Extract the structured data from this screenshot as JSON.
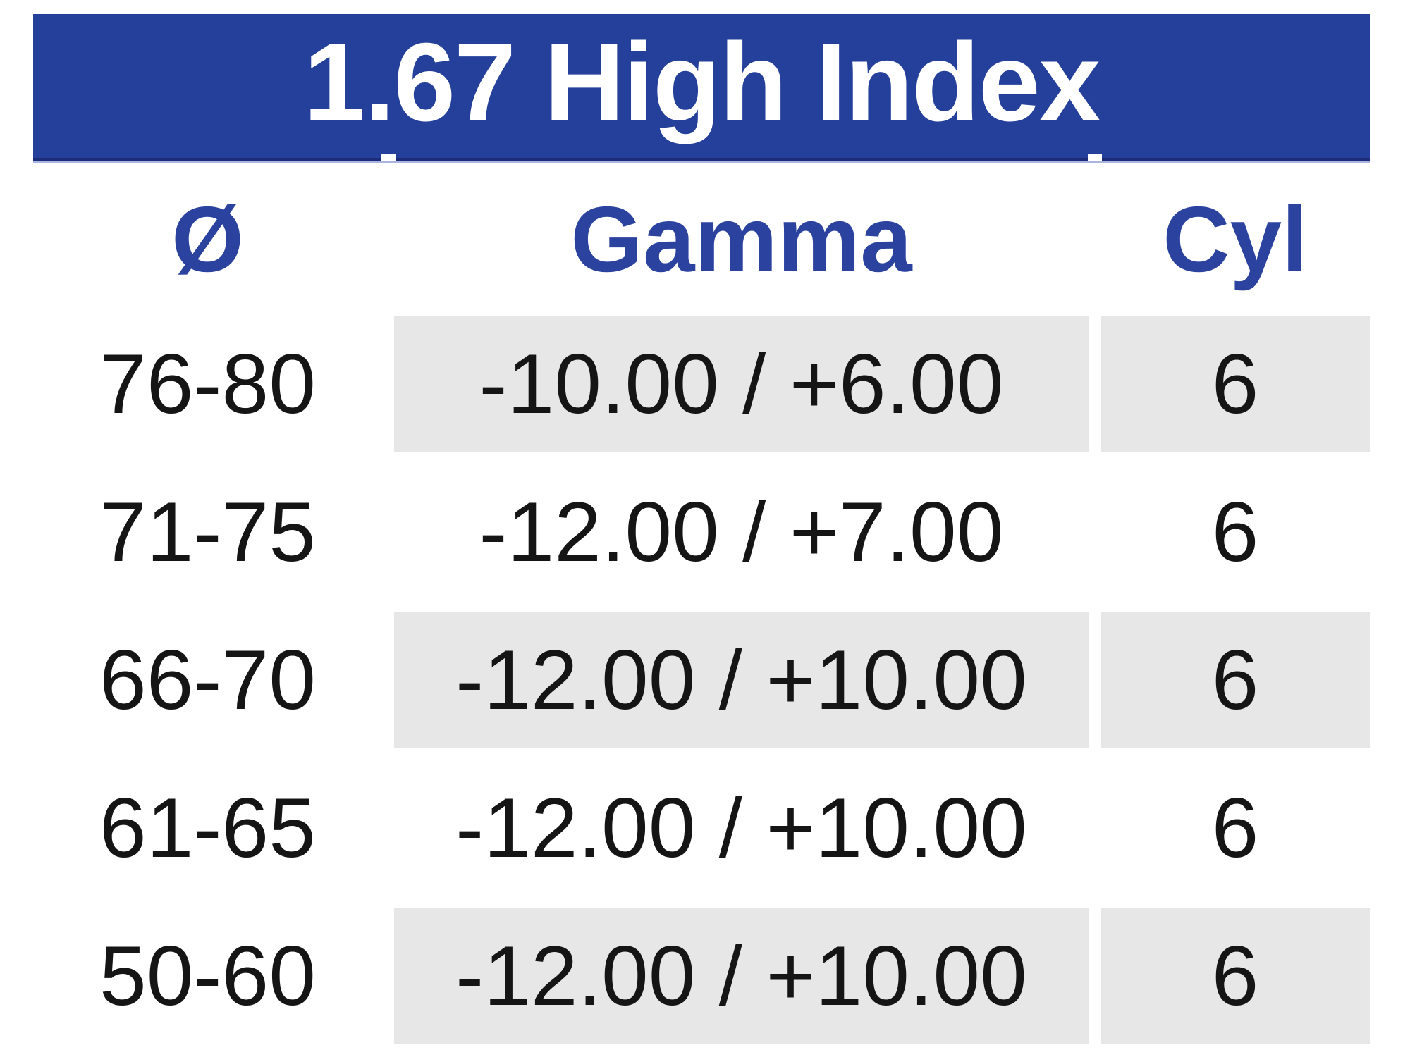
{
  "table": {
    "title": "1.67 High Index",
    "columns": [
      {
        "key": "diameter",
        "label": "Ø"
      },
      {
        "key": "gamma",
        "label": "Gamma"
      },
      {
        "key": "cyl",
        "label": "Cyl"
      }
    ],
    "rows": [
      {
        "diameter": "76-80",
        "gamma": "-10.00 / +6.00",
        "cyl": "6",
        "shaded": true
      },
      {
        "diameter": "71-75",
        "gamma": "-12.00 / +7.00",
        "cyl": "6",
        "shaded": false
      },
      {
        "diameter": "66-70",
        "gamma": "-12.00 / +10.00",
        "cyl": "6",
        "shaded": true
      },
      {
        "diameter": "61-65",
        "gamma": "-12.00 / +10.00",
        "cyl": "6",
        "shaded": false
      },
      {
        "diameter": "50-60",
        "gamma": "-12.00 / +10.00",
        "cyl": "6",
        "shaded": true
      }
    ],
    "colors": {
      "banner_bg": "#24409A",
      "banner_bottom_border": "#1C2C78",
      "banner_underline": "#A9B5DF",
      "header_text": "#2B429F",
      "row_shade": "#E7E7E7",
      "data_text": "#151515",
      "banner_text": "#FFFFFF"
    }
  }
}
